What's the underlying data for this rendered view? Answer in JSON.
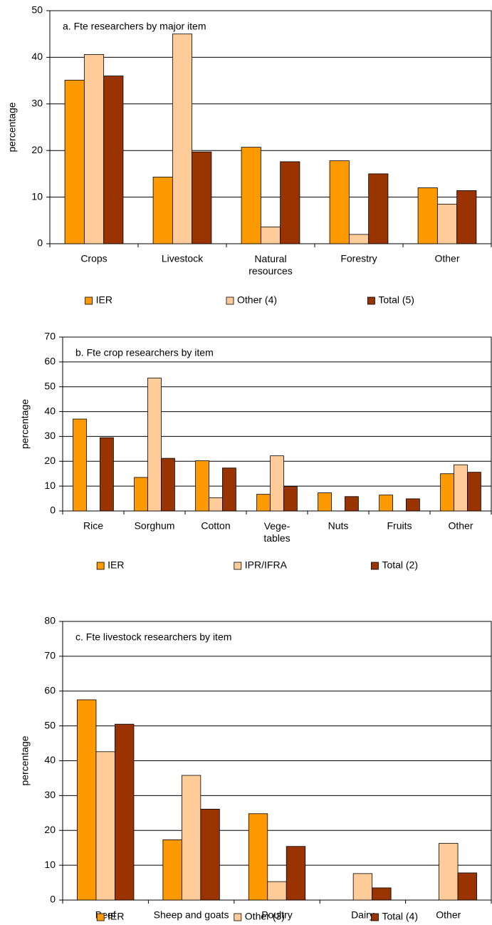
{
  "chart_data": [
    {
      "type": "bar",
      "title": "a. Fte researchers by major item",
      "y_label": "percentage",
      "categories": [
        "Crops",
        "Livestock",
        "Natural\nresources",
        "Forestry",
        "Other"
      ],
      "series": [
        {
          "name": "IER",
          "color": "#ff9900",
          "values": [
            35.1,
            14.3,
            20.7,
            17.8,
            12.0
          ]
        },
        {
          "name": "Other (4)",
          "color": "#ffcc99",
          "values": [
            40.6,
            45.0,
            3.6,
            2.0,
            8.5
          ]
        },
        {
          "name": "Total (5)",
          "color": "#993300",
          "values": [
            36.0,
            19.7,
            17.6,
            15.0,
            11.4
          ]
        }
      ],
      "ylim": [
        0,
        50
      ],
      "yticks": [
        0,
        10,
        20,
        30,
        40,
        50
      ],
      "grid": true
    },
    {
      "type": "bar",
      "title": "b. Fte crop researchers by item",
      "y_label": "percentage",
      "categories": [
        "Rice",
        "Sorghum",
        "Cotton",
        "Vege-\ntables",
        "Nuts",
        "Fruits",
        "Other"
      ],
      "series": [
        {
          "name": "IER",
          "color": "#ff9900",
          "values": [
            37.0,
            13.5,
            20.2,
            6.7,
            7.3,
            6.4,
            15.0
          ]
        },
        {
          "name": "IPR/IFRA",
          "color": "#ffcc99",
          "values": [
            0,
            53.5,
            5.3,
            22.2,
            0,
            0,
            18.6
          ]
        },
        {
          "name": "Total (2)",
          "color": "#993300",
          "values": [
            29.5,
            21.2,
            17.3,
            9.9,
            5.8,
            4.9,
            15.6
          ]
        }
      ],
      "ylim": [
        0,
        70
      ],
      "yticks": [
        0,
        10,
        20,
        30,
        40,
        50,
        60,
        70
      ],
      "grid": true
    },
    {
      "type": "bar",
      "title": "c. Fte livestock researchers by item",
      "y_label": "percentage",
      "categories": [
        "Beef",
        "Sheep and goats",
        "Poultry",
        "Dairy",
        "Other"
      ],
      "series": [
        {
          "name": "IER",
          "color": "#ff9900",
          "values": [
            57.5,
            17.3,
            24.8,
            0,
            0
          ]
        },
        {
          "name": "Other (3)",
          "color": "#ffcc99",
          "values": [
            42.6,
            35.8,
            5.3,
            7.6,
            16.3
          ]
        },
        {
          "name": "Total (4)",
          "color": "#993300",
          "values": [
            50.5,
            26.1,
            15.4,
            3.5,
            7.8
          ]
        }
      ],
      "ylim": [
        0,
        80
      ],
      "yticks": [
        0,
        10,
        20,
        30,
        40,
        50,
        60,
        70,
        80
      ],
      "grid": true
    }
  ]
}
